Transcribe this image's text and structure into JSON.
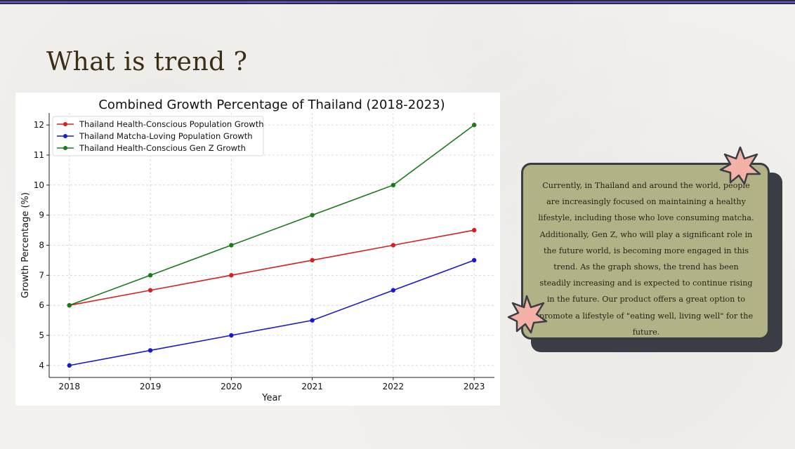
{
  "slide": {
    "title": "What is trend ?",
    "note": "Currently, in Thailand and around the world, people are increasingly focused on maintaining a healthy lifestyle, including those who love consuming matcha. Additionally, Gen Z, who will play a significant role in the future world, is becoming more engaged in this trend. As the graph shows, the trend has been steadily increasing and is expected to continue rising in the future. Our product offers a great option to promote a lifestyle of \"eating well, living well\" for the future."
  },
  "colors": {
    "accent_bar": "#2a2740",
    "note_background": "#b1b387",
    "note_shadow": "#3a3d43",
    "star_fill": "#f4b1a6"
  },
  "icons": [
    "star-icon",
    "star-icon"
  ],
  "chart_data": {
    "type": "line",
    "title": "Combined Growth Percentage of Thailand (2018-2023)",
    "xlabel": "Year",
    "ylabel": "Growth Percentage (%)",
    "x": [
      2018,
      2019,
      2020,
      2021,
      2022,
      2023
    ],
    "xticks": [
      "2018",
      "2019",
      "2020",
      "2021",
      "2022",
      "2023"
    ],
    "yticks": [
      "4",
      "5",
      "6",
      "7",
      "8",
      "9",
      "10",
      "11",
      "12"
    ],
    "ylim": [
      3.6,
      12.4
    ],
    "grid": true,
    "legend_position": "top-left",
    "series": [
      {
        "name": "Thailand Health-Conscious Population Growth",
        "color": "#d62020",
        "values": [
          6,
          6.5,
          7,
          7.5,
          8,
          8.5
        ]
      },
      {
        "name": "Thailand Matcha-Loving Population Growth",
        "color": "#1a1acc",
        "values": [
          4,
          4.5,
          5,
          5.5,
          6.5,
          7.5
        ]
      },
      {
        "name": "Thailand Health-Conscious Gen Z Growth",
        "color": "#1a7a1a",
        "values": [
          6,
          7,
          8,
          9,
          10,
          12
        ]
      }
    ]
  }
}
